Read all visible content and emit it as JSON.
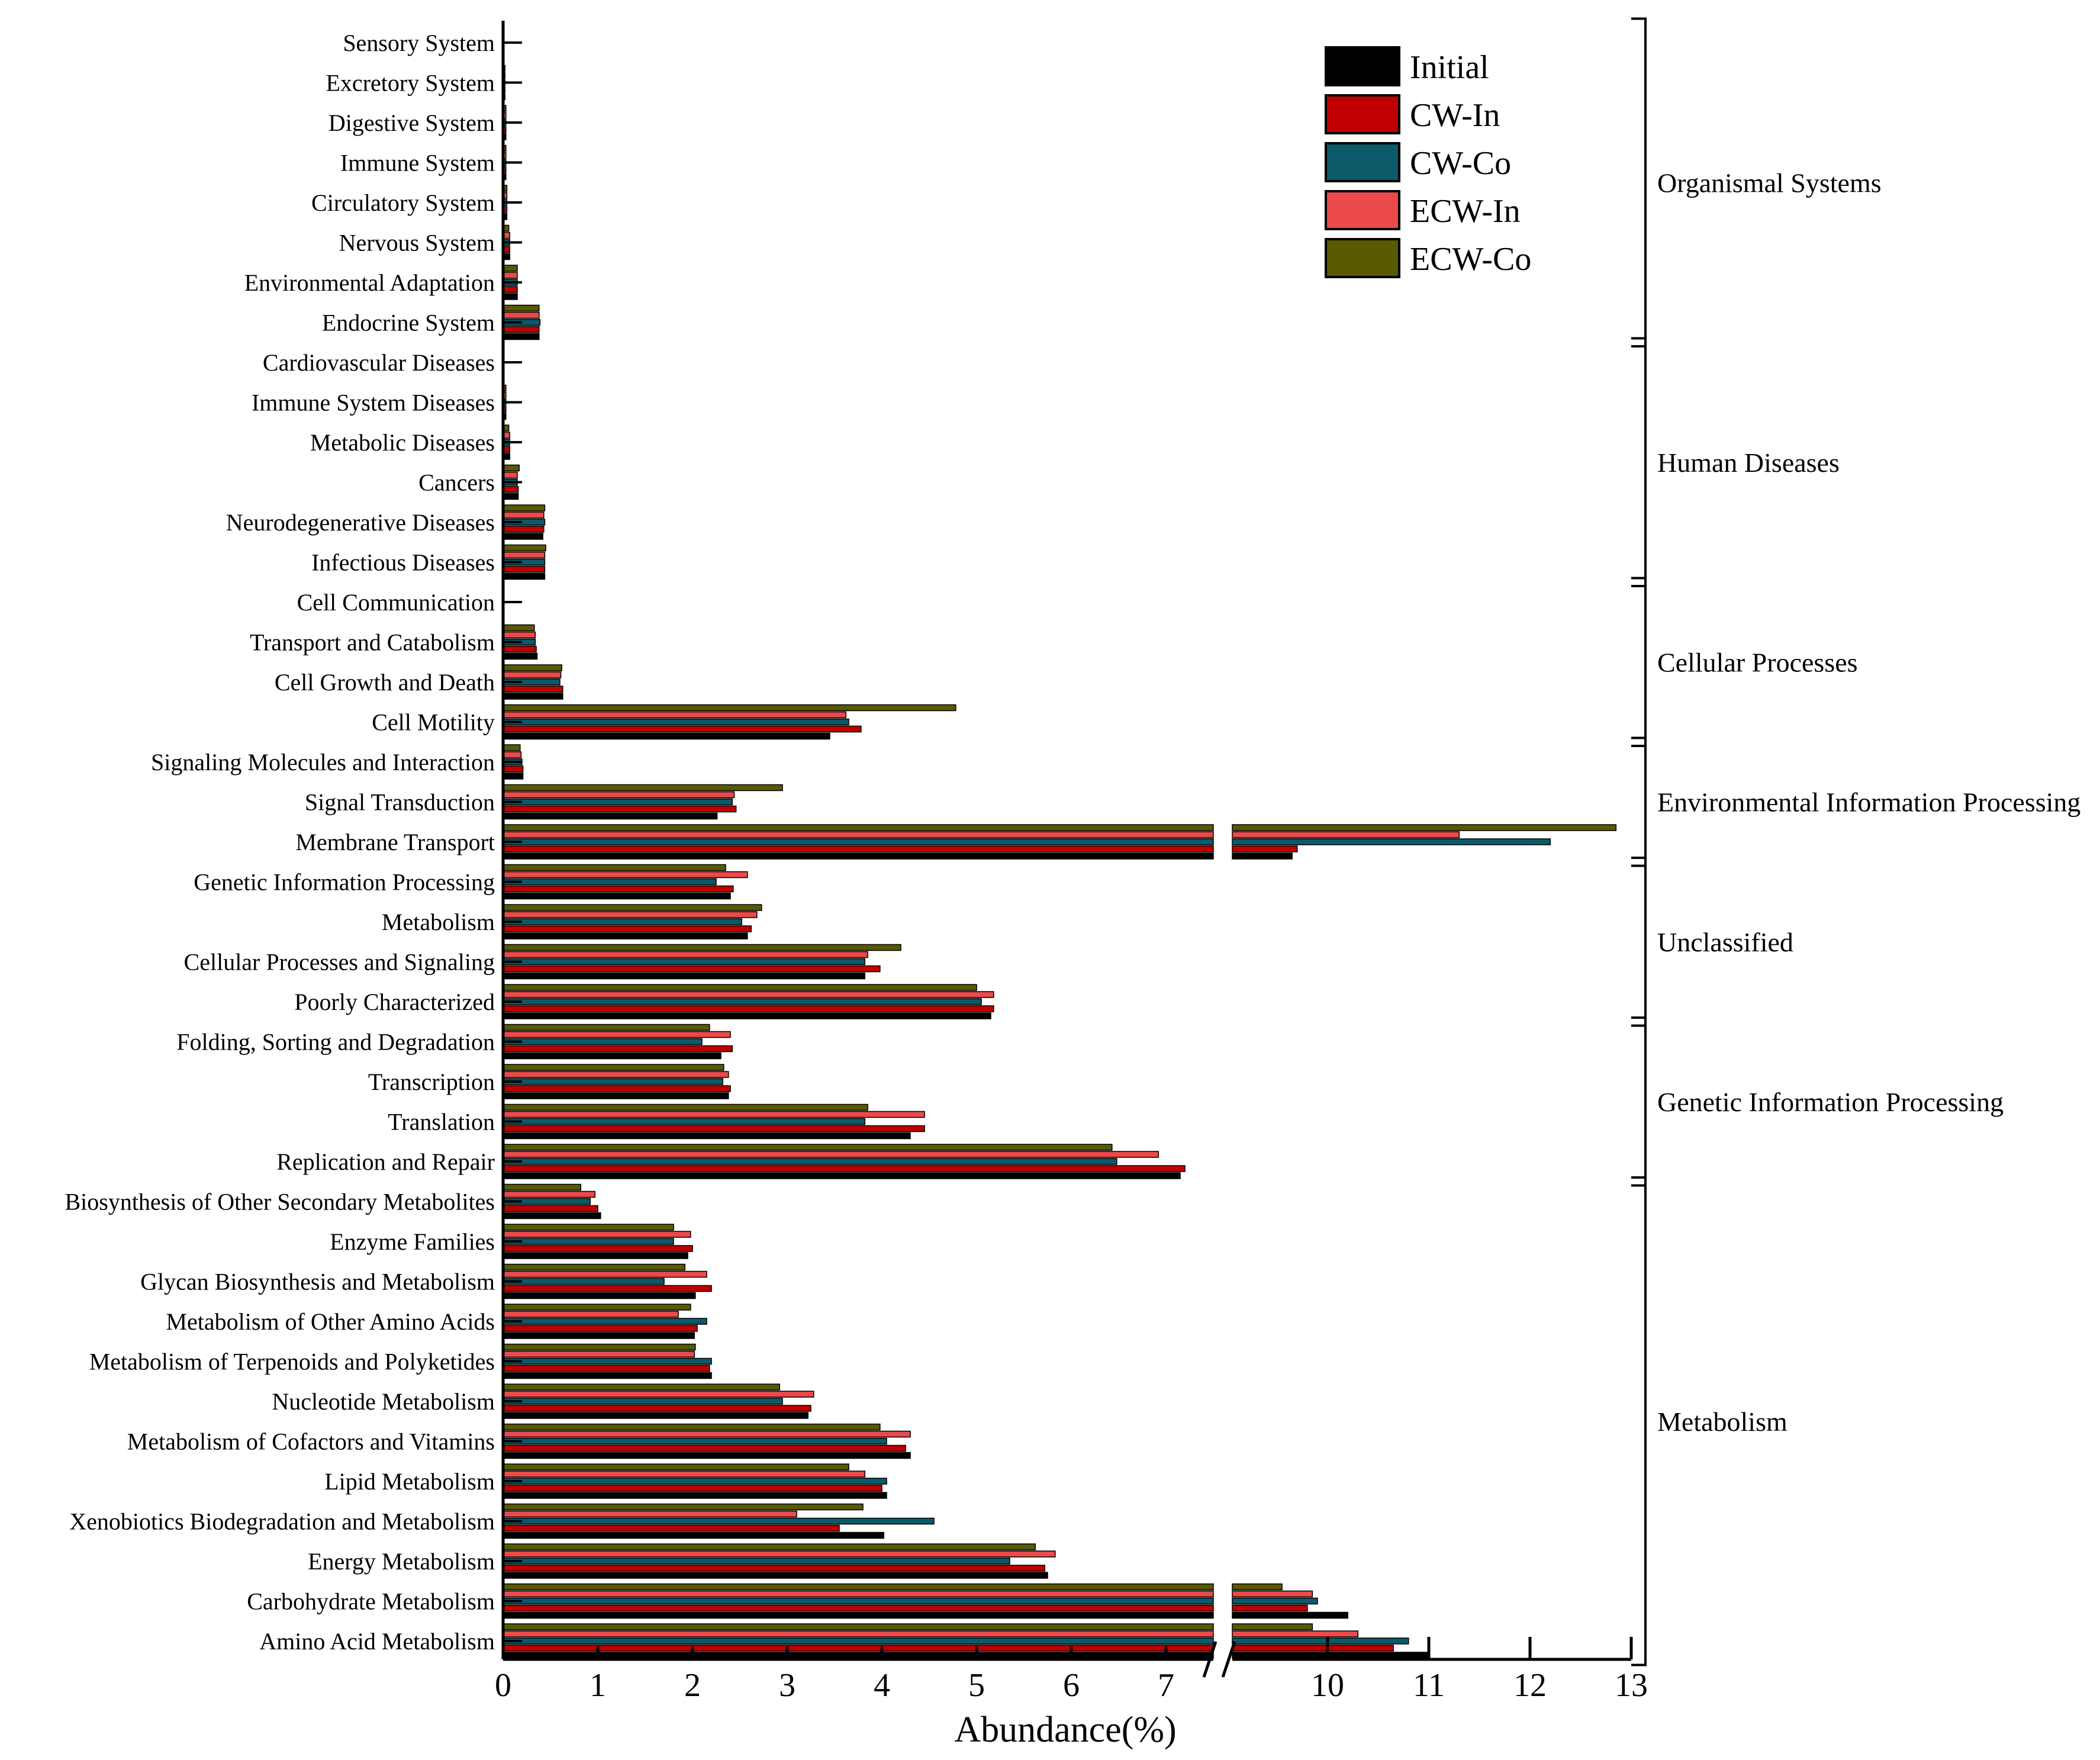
{
  "chart_data": {
    "type": "bar",
    "orientation": "horizontal",
    "xlabel": "Abundance(%)",
    "x_axis": {
      "segments": [
        [
          0,
          7.5
        ],
        [
          9.5,
          13
        ]
      ],
      "break_marks": true,
      "ticks_left": [
        "0",
        "1",
        "2",
        "3",
        "4",
        "5",
        "6",
        "7"
      ],
      "tick_values_left": [
        0,
        1,
        2,
        3,
        4,
        5,
        6,
        7
      ],
      "ticks_right": [
        "10",
        "11",
        "12",
        "13"
      ],
      "tick_values_right": [
        10,
        11,
        12,
        13
      ]
    },
    "legend": {
      "position": "top-right",
      "entries": [
        {
          "name": "Initial",
          "color": "#000000"
        },
        {
          "name": "CW-In",
          "color": "#c00000"
        },
        {
          "name": "CW-Co",
          "color": "#0b5a6a"
        },
        {
          "name": "ECW-In",
          "color": "#ea4a4a"
        },
        {
          "name": "ECW-Co",
          "color": "#595900"
        }
      ]
    },
    "series_order": [
      "Initial",
      "CW-In",
      "CW-Co",
      "ECW-In",
      "ECW-Co"
    ],
    "categories": [
      "Sensory System",
      "Excretory System",
      "Digestive System",
      "Immune System",
      "Circulatory System",
      "Nervous System",
      "Environmental Adaptation",
      "Endocrine System",
      "Cardiovascular Diseases",
      "Immune System Diseases",
      "Metabolic Diseases",
      "Cancers",
      "Neurodegenerative Diseases",
      "Infectious Diseases",
      "Cell Communication",
      "Transport and Catabolism",
      "Cell Growth and Death",
      "Cell Motility",
      "Signaling Molecules and Interaction",
      "Signal Transduction",
      "Membrane Transport",
      "Genetic Information Processing",
      "Metabolism",
      "Cellular Processes and Signaling",
      "Poorly Characterized",
      "Folding, Sorting and Degradation",
      "Transcription",
      "Translation",
      "Replication and Repair",
      "Biosynthesis of Other Secondary Metabolites",
      "Enzyme Families",
      "Glycan Biosynthesis and Metabolism",
      "Metabolism of Other Amino Acids",
      "Metabolism of Terpenoids and Polyketides",
      "Nucleotide Metabolism",
      "Metabolism of Cofactors and Vitamins",
      "Lipid Metabolism",
      "Xenobiotics Biodegradation and Metabolism",
      "Energy Metabolism",
      "Carbohydrate Metabolism",
      "Amino Acid Metabolism"
    ],
    "series": [
      {
        "name": "Initial",
        "values": [
          0.01,
          0.02,
          0.03,
          0.03,
          0.04,
          0.07,
          0.15,
          0.38,
          0.01,
          0.03,
          0.07,
          0.16,
          0.42,
          0.44,
          0.01,
          0.36,
          0.63,
          3.45,
          0.21,
          2.26,
          9.65,
          2.4,
          2.58,
          3.82,
          5.15,
          2.3,
          2.38,
          4.3,
          7.15,
          1.03,
          1.95,
          2.03,
          2.02,
          2.2,
          3.22,
          4.3,
          4.05,
          4.02,
          5.75,
          10.2,
          11.0
        ]
      },
      {
        "name": "CW-In",
        "values": [
          0.01,
          0.02,
          0.03,
          0.03,
          0.04,
          0.07,
          0.15,
          0.38,
          0.01,
          0.03,
          0.07,
          0.16,
          0.43,
          0.44,
          0.01,
          0.35,
          0.63,
          3.78,
          0.21,
          2.46,
          9.7,
          2.43,
          2.62,
          3.98,
          5.18,
          2.42,
          2.4,
          4.45,
          7.2,
          1.0,
          2.0,
          2.2,
          2.05,
          2.18,
          3.25,
          4.25,
          4.0,
          3.55,
          5.72,
          9.8,
          10.65
        ]
      },
      {
        "name": "CW-Co",
        "values": [
          0.01,
          0.02,
          0.03,
          0.03,
          0.04,
          0.07,
          0.15,
          0.39,
          0.01,
          0.03,
          0.07,
          0.15,
          0.44,
          0.44,
          0.01,
          0.34,
          0.6,
          3.65,
          0.2,
          2.42,
          12.2,
          2.25,
          2.52,
          3.82,
          5.05,
          2.1,
          2.32,
          3.82,
          6.48,
          0.92,
          1.8,
          1.7,
          2.15,
          2.2,
          2.95,
          4.05,
          4.05,
          4.55,
          5.35,
          9.9,
          10.8
        ]
      },
      {
        "name": "ECW-In",
        "values": [
          0.01,
          0.02,
          0.03,
          0.03,
          0.04,
          0.07,
          0.15,
          0.38,
          0.01,
          0.03,
          0.07,
          0.15,
          0.43,
          0.44,
          0.01,
          0.34,
          0.61,
          3.62,
          0.19,
          2.44,
          11.3,
          2.58,
          2.68,
          3.85,
          5.18,
          2.4,
          2.38,
          4.45,
          6.92,
          0.97,
          1.98,
          2.15,
          1.85,
          2.02,
          3.28,
          4.3,
          3.82,
          3.1,
          5.83,
          9.85,
          10.3
        ]
      },
      {
        "name": "ECW-Co",
        "values": [
          0.01,
          0.02,
          0.03,
          0.03,
          0.04,
          0.06,
          0.15,
          0.38,
          0.01,
          0.03,
          0.06,
          0.17,
          0.44,
          0.45,
          0.01,
          0.33,
          0.62,
          4.78,
          0.18,
          2.95,
          12.85,
          2.35,
          2.73,
          4.2,
          5.0,
          2.18,
          2.33,
          3.85,
          6.43,
          0.82,
          1.8,
          1.92,
          1.98,
          2.03,
          2.92,
          3.98,
          3.65,
          3.8,
          5.62,
          9.55,
          9.85
        ]
      }
    ],
    "groups": [
      {
        "name": "Organismal Systems",
        "first": 0,
        "last": 7
      },
      {
        "name": "Human Diseases",
        "first": 8,
        "last": 13
      },
      {
        "name": "Cellular Processes",
        "first": 14,
        "last": 17
      },
      {
        "name": "Environmental Information Processing",
        "first": 18,
        "last": 20
      },
      {
        "name": "Unclassified",
        "first": 21,
        "last": 24
      },
      {
        "name": "Genetic Information Processing",
        "first": 25,
        "last": 28
      },
      {
        "name": "Metabolism",
        "first": 29,
        "last": 40
      }
    ]
  }
}
